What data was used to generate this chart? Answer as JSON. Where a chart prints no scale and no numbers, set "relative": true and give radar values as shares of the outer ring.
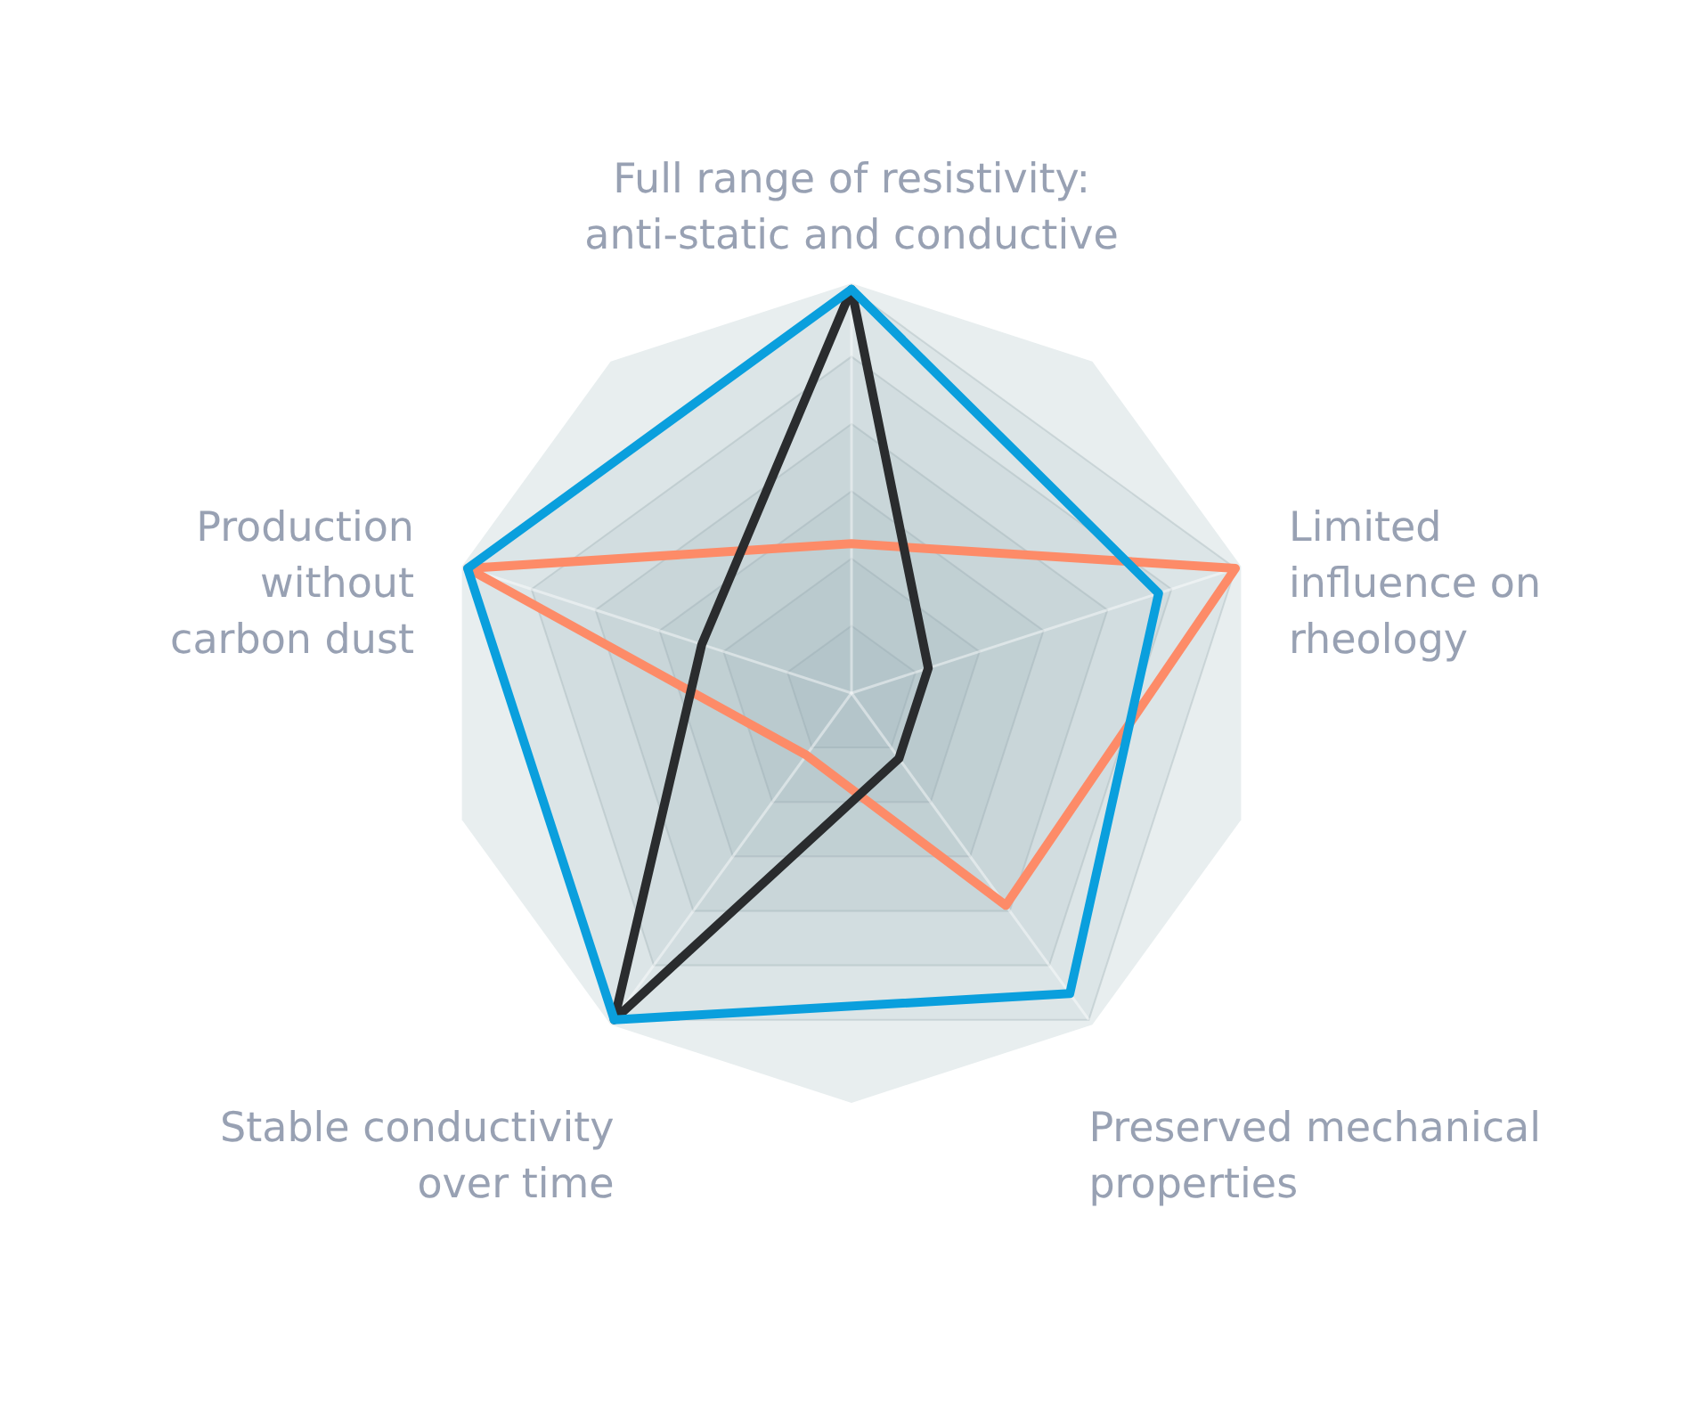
{
  "chart_data": {
    "type": "radar",
    "relative": true,
    "grid": true,
    "categories": [
      "Full range of resistivity: anti-static and conductive",
      "Limited influence on rheology",
      "Preserved mechanical properties",
      "Stable conductivity over time",
      "Production without carbon dust"
    ],
    "series": [
      {
        "color": "#fd8b68",
        "values": [
          0.37,
          1,
          0.65,
          0.19,
          1
        ]
      },
      {
        "color": "#2a2c2e",
        "values": [
          1,
          0.2,
          0.2,
          1,
          0.39
        ]
      },
      {
        "color": "#0a9fdd",
        "values": [
          1,
          0.8,
          0.92,
          1,
          1
        ]
      }
    ]
  }
}
